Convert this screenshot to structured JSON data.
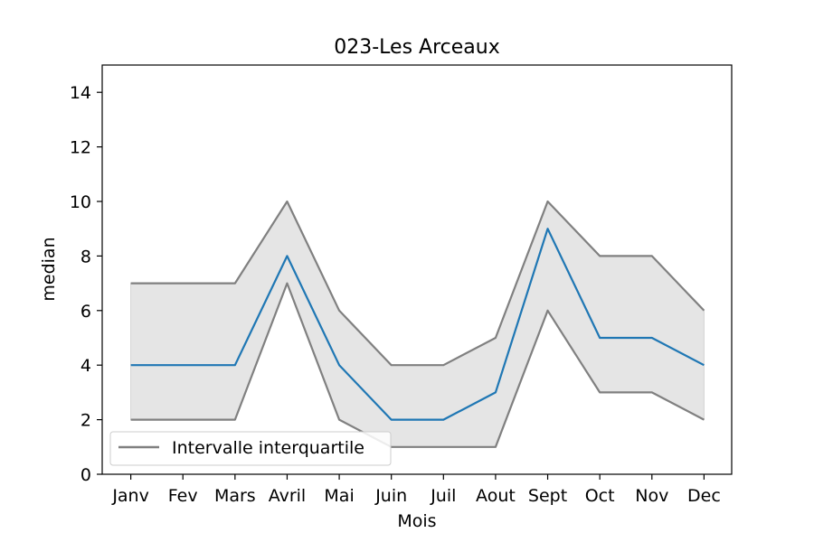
{
  "chart_data": {
    "type": "line",
    "title": "023-Les Arceaux",
    "xlabel": "Mois",
    "ylabel": "median",
    "categories": [
      "Janv",
      "Fev",
      "Mars",
      "Avril",
      "Mai",
      "Juin",
      "Juil",
      "Aout",
      "Sept",
      "Oct",
      "Nov",
      "Dec"
    ],
    "ylim": [
      0,
      15
    ],
    "yticks": [
      0,
      2,
      4,
      6,
      8,
      10,
      12,
      14
    ],
    "grid": false,
    "legend_position": "lower-left",
    "series": [
      {
        "role": "median",
        "values": [
          4,
          4,
          4,
          8,
          4,
          2,
          2,
          3,
          9,
          5,
          5,
          4
        ],
        "color": "#1f77b4"
      },
      {
        "role": "upper-quartile",
        "values": [
          7,
          7,
          7,
          10,
          6,
          4,
          4,
          5,
          10,
          8,
          8,
          6
        ],
        "color": "#808080"
      },
      {
        "role": "lower-quartile",
        "values": [
          2,
          2,
          2,
          7,
          2,
          1,
          1,
          1,
          6,
          3,
          3,
          2
        ],
        "color": "#808080"
      }
    ],
    "band_fill": "#e5e5e5",
    "legend": [
      {
        "label": "Intervalle interquartile",
        "color": "#808080"
      }
    ]
  }
}
